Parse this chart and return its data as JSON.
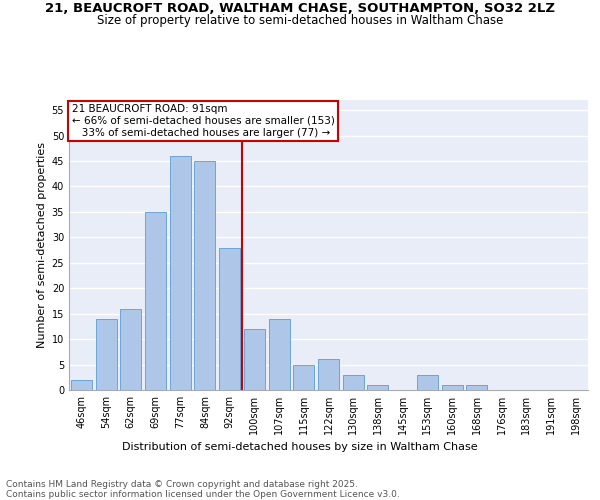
{
  "title_line1": "21, BEAUCROFT ROAD, WALTHAM CHASE, SOUTHAMPTON, SO32 2LZ",
  "title_line2": "Size of property relative to semi-detached houses in Waltham Chase",
  "xlabel": "Distribution of semi-detached houses by size in Waltham Chase",
  "ylabel": "Number of semi-detached properties",
  "categories": [
    "46sqm",
    "54sqm",
    "62sqm",
    "69sqm",
    "77sqm",
    "84sqm",
    "92sqm",
    "100sqm",
    "107sqm",
    "115sqm",
    "122sqm",
    "130sqm",
    "138sqm",
    "145sqm",
    "153sqm",
    "160sqm",
    "168sqm",
    "176sqm",
    "183sqm",
    "191sqm",
    "198sqm"
  ],
  "values": [
    2,
    14,
    16,
    35,
    46,
    45,
    28,
    12,
    14,
    5,
    6,
    3,
    1,
    0,
    3,
    1,
    1,
    0,
    0,
    0,
    0
  ],
  "bar_color": "#aec6e8",
  "bar_edge_color": "#5b9bd5",
  "vline_x": 6,
  "vline_color": "#cc0000",
  "annotation_text": "21 BEAUCROFT ROAD: 91sqm\n← 66% of semi-detached houses are smaller (153)\n   33% of semi-detached houses are larger (77) →",
  "annotation_box_color": "#ffffff",
  "annotation_box_edge": "#cc0000",
  "ylim": [
    0,
    57
  ],
  "yticks": [
    0,
    5,
    10,
    15,
    20,
    25,
    30,
    35,
    40,
    45,
    50,
    55
  ],
  "background_color": "#e8edf8",
  "footer_text": "Contains HM Land Registry data © Crown copyright and database right 2025.\nContains public sector information licensed under the Open Government Licence v3.0.",
  "title_fontsize": 9.5,
  "subtitle_fontsize": 8.5,
  "axis_label_fontsize": 8,
  "tick_fontsize": 7,
  "annotation_fontsize": 7.5,
  "footer_fontsize": 6.5
}
